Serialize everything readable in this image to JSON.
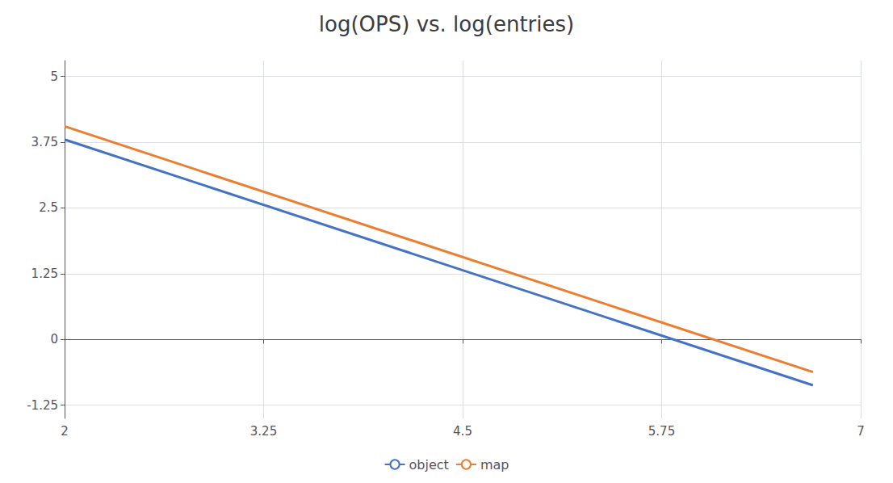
{
  "chart_data": {
    "type": "line",
    "title": "log(OPS) vs. log(entries)",
    "x": [
      2.0,
      6.7
    ],
    "series": [
      {
        "name": "object",
        "color": "#4472C4",
        "values": [
          3.8,
          -0.87
        ]
      },
      {
        "name": "map",
        "color": "#ED7D31",
        "values": [
          4.05,
          -0.62
        ]
      }
    ],
    "xlim": [
      2.0,
      7.0
    ],
    "ylim": [
      -1.5,
      5.3
    ],
    "xticks": [
      2,
      3.25,
      4.5,
      5.75,
      7
    ],
    "yticks": [
      -1.25,
      0,
      1.25,
      2.5,
      3.75,
      5
    ],
    "grid": true,
    "legend": "bottom"
  }
}
